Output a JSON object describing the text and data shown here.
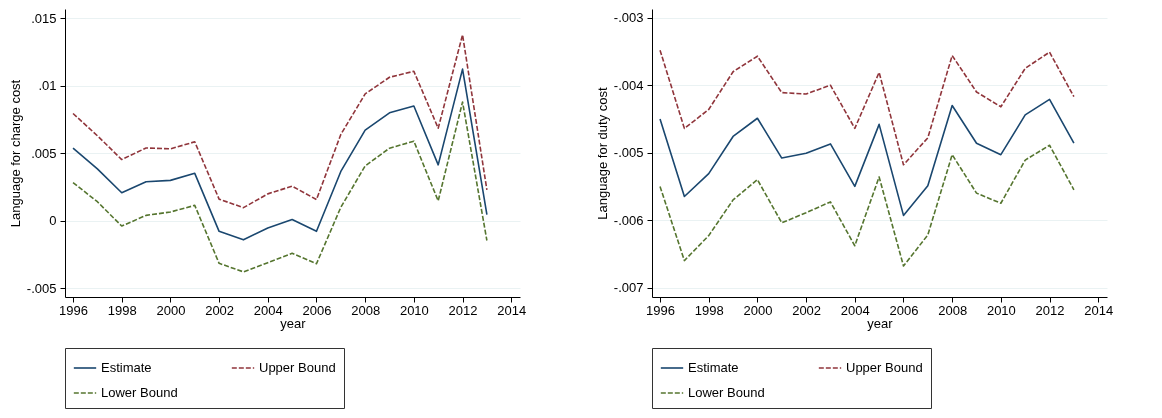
{
  "chart_data": [
    {
      "type": "line",
      "xlabel": "year",
      "ylabel": "Language for charge cost",
      "x": [
        1996,
        1997,
        1998,
        1999,
        2000,
        2001,
        2002,
        2003,
        2004,
        2005,
        2006,
        2007,
        2008,
        2009,
        2010,
        2011,
        2012,
        2013
      ],
      "xlim": [
        1995.67,
        2014.36
      ],
      "xticks": [
        1996,
        1998,
        2000,
        2002,
        2004,
        2006,
        2008,
        2010,
        2012,
        2014
      ],
      "ylim": [
        -0.00563,
        0.01568
      ],
      "yticks": [
        {
          "value": -0.005,
          "label": "-.005"
        },
        0,
        {
          "value": 0.005,
          "label": ".005"
        },
        {
          "value": 0.01,
          "label": ".01"
        },
        {
          "value": 0.015,
          "label": ".015"
        }
      ],
      "grid": "y",
      "legend": "bottom",
      "series": [
        {
          "name": "Estimate",
          "color": "#1a476f",
          "line_style": "solid",
          "values": [
            0.00538,
            0.00385,
            0.00208,
            0.0029,
            0.003,
            0.00352,
            -0.00077,
            -0.0014,
            -0.00052,
            0.0001,
            -0.00077,
            0.00366,
            0.00672,
            0.008,
            0.0085,
            0.00415,
            0.01123,
            0.00046
          ]
        },
        {
          "name": "Upper Bound",
          "color": "#90353b",
          "line_style": "dashed",
          "values": [
            0.00795,
            0.0063,
            0.00454,
            0.0054,
            0.00533,
            0.00585,
            0.00161,
            0.00098,
            0.002,
            0.00257,
            0.00158,
            0.0064,
            0.0094,
            0.01063,
            0.01107,
            0.00686,
            0.01377,
            0.0023
          ]
        },
        {
          "name": "Lower Bound",
          "color": "#55752f",
          "line_style": "dashed",
          "values": [
            0.00284,
            0.00142,
            -0.00038,
            0.00041,
            0.00066,
            0.00115,
            -0.00314,
            -0.00377,
            -0.00309,
            -0.0024,
            -0.00317,
            0.00101,
            0.00407,
            0.00538,
            0.0059,
            0.00148,
            0.0088,
            -0.00145
          ]
        }
      ]
    },
    {
      "type": "line",
      "xlabel": "year",
      "ylabel": "Language for duty cost",
      "x": [
        1996,
        1997,
        1998,
        1999,
        2000,
        2001,
        2002,
        2003,
        2004,
        2005,
        2006,
        2007,
        2008,
        2009,
        2010,
        2011,
        2012,
        2013
      ],
      "xlim": [
        1995.67,
        2014.36
      ],
      "xticks": [
        1996,
        1998,
        2000,
        2002,
        2004,
        2006,
        2008,
        2010,
        2012,
        2014
      ],
      "ylim": [
        -0.00714,
        -0.00287
      ],
      "yticks": [
        {
          "value": -0.007,
          "label": "-.007"
        },
        {
          "value": -0.006,
          "label": "-.006"
        },
        {
          "value": -0.005,
          "label": "-.005"
        },
        {
          "value": -0.004,
          "label": "-.004"
        },
        {
          "value": -0.003,
          "label": "-.003"
        }
      ],
      "grid": "y",
      "legend": "bottom",
      "series": [
        {
          "name": "Estimate",
          "color": "#1a476f",
          "line_style": "solid",
          "values": [
            -0.0045,
            -0.00565,
            -0.00531,
            -0.00476,
            -0.00449,
            -0.00508,
            -0.00501,
            -0.00487,
            -0.0055,
            -0.00458,
            -0.00593,
            -0.00549,
            -0.0043,
            -0.00486,
            -0.00503,
            -0.00444,
            -0.00421,
            -0.00486
          ]
        },
        {
          "name": "Upper Bound",
          "color": "#90353b",
          "line_style": "dashed",
          "values": [
            -0.00348,
            -0.00464,
            -0.00436,
            -0.0038,
            -0.00357,
            -0.00411,
            -0.00413,
            -0.004,
            -0.00464,
            -0.00381,
            -0.00518,
            -0.00478,
            -0.00356,
            -0.0041,
            -0.00432,
            -0.00375,
            -0.00351,
            -0.00417
          ]
        },
        {
          "name": "Lower Bound",
          "color": "#55752f",
          "line_style": "dashed",
          "values": [
            -0.0055,
            -0.0066,
            -0.00623,
            -0.0057,
            -0.0054,
            -0.00604,
            -0.00589,
            -0.00573,
            -0.00638,
            -0.00536,
            -0.00668,
            -0.00622,
            -0.00503,
            -0.0056,
            -0.00575,
            -0.00511,
            -0.00489,
            -0.00555
          ]
        }
      ]
    }
  ]
}
